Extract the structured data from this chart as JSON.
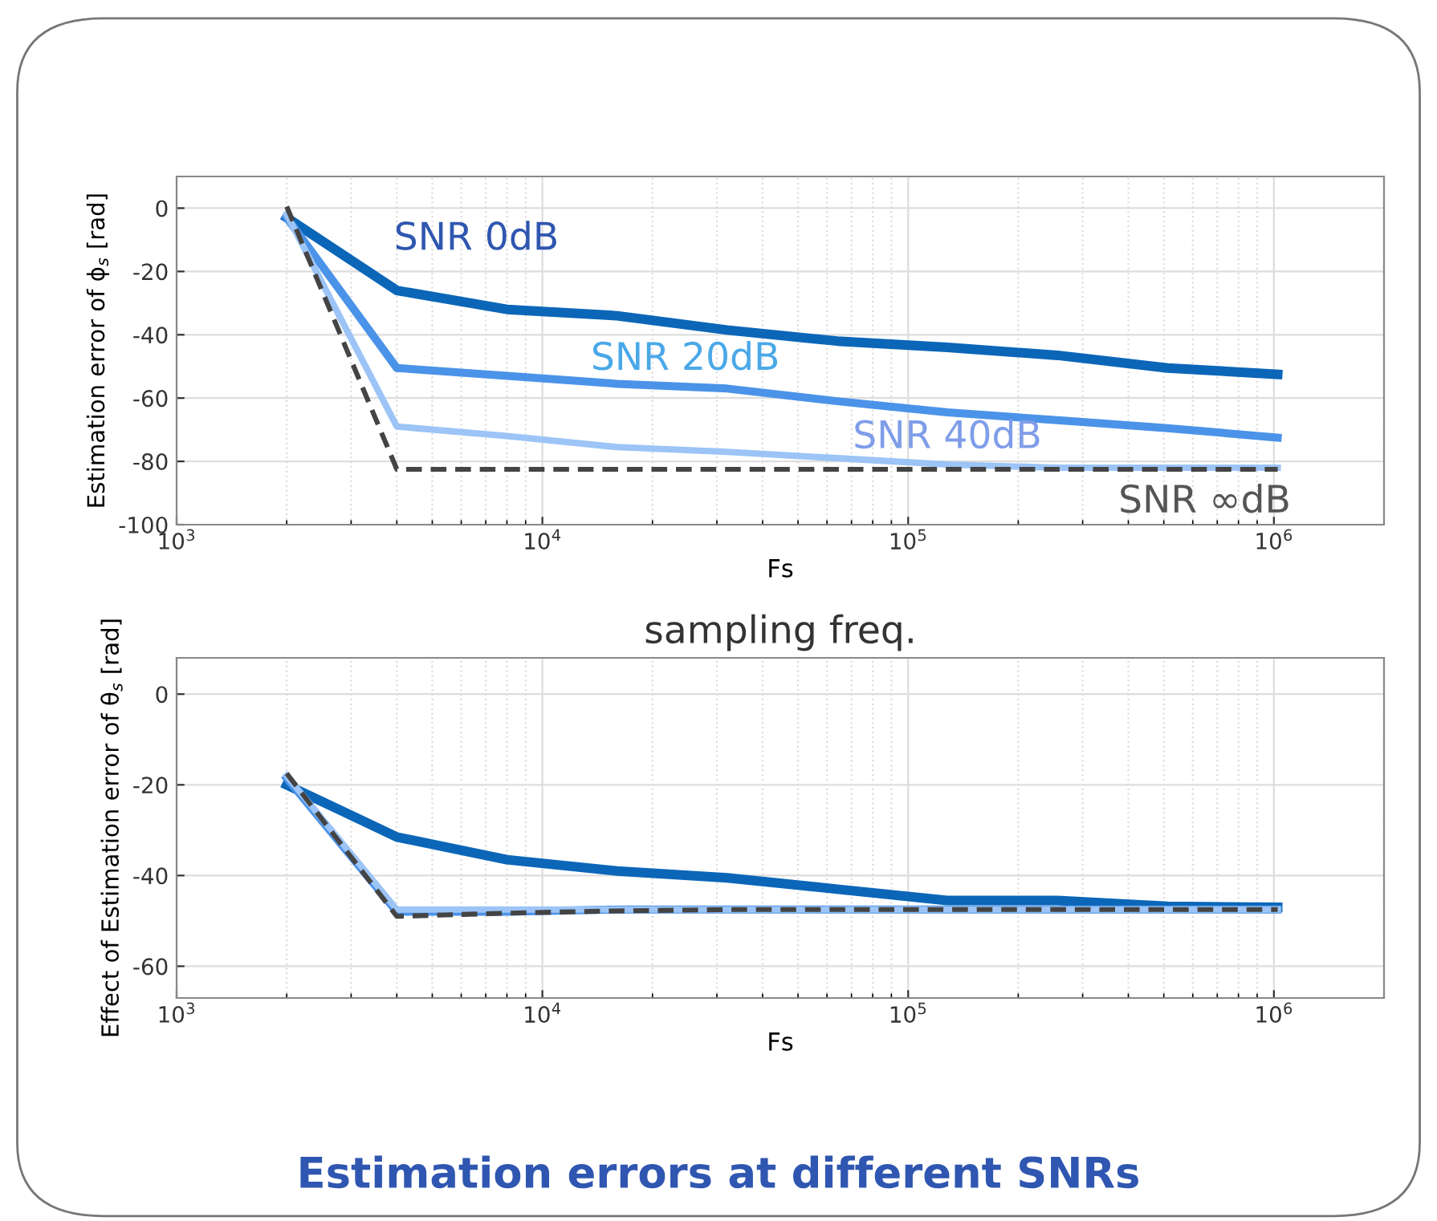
{
  "chart_data": [
    {
      "type": "line",
      "xlabel": "Fs",
      "ylabel": "Estimation error of ϕ$_{s}$ [rad]",
      "log": "x",
      "grid": true,
      "line_style": "solid",
      "marker": "none",
      "x": [
        2000,
        4000,
        8000,
        16000,
        32000,
        64000,
        128000,
        256000,
        512000,
        1024000
      ],
      "xlim": [
        1000,
        2000000
      ],
      "xticks": [
        {
          "value": 1000,
          "label": "10$^{3}$"
        },
        {
          "value": 10000,
          "label": "10$^{4}$"
        },
        {
          "value": 100000,
          "label": "10$^{5}$"
        },
        {
          "value": 1000000,
          "label": "10$^{6}$"
        }
      ],
      "ylim": [
        -100,
        10
      ],
      "yticks": [
        -100,
        -80,
        -60,
        -40,
        -20,
        0
      ],
      "series": [
        {
          "name": "SNR 0dB",
          "color": "#0b66b8",
          "values": [
            -3,
            -26,
            -32,
            -34,
            -38.5,
            -42,
            -44,
            -46.5,
            -50.5,
            -52.5
          ]
        },
        {
          "name": "SNR 20dB",
          "color": "#4b93e8",
          "values": [
            -3,
            -50.5,
            -53,
            -55.5,
            -57,
            -61,
            -64.5,
            -67,
            -69.5,
            -72.5
          ]
        },
        {
          "name": "SNR 40dB",
          "color": "#9cc4f6",
          "values": [
            -2,
            -69,
            -72,
            -75.5,
            -77,
            -79,
            -81,
            -82,
            -82,
            -82
          ]
        },
        {
          "name": "SNR ∞dB",
          "color": "#444444",
          "line_style": "dashed",
          "values": [
            0.5,
            -82.5,
            -82.5,
            -82.5,
            -82.5,
            -82.5,
            -82.5,
            -82.5,
            -82.5,
            -82.5
          ]
        }
      ],
      "annotations": [
        "sampling freq."
      ]
    },
    {
      "type": "line",
      "xlabel": "Fs",
      "ylabel": "Effect of Estimation error of θ$_{s}$ [rad]",
      "log": "x",
      "grid": true,
      "line_style": "solid",
      "marker": "none",
      "x": [
        2000,
        4000,
        8000,
        16000,
        32000,
        64000,
        128000,
        256000,
        512000,
        1024000
      ],
      "xlim": [
        1000,
        2000000
      ],
      "xticks": [
        {
          "value": 1000,
          "label": "10$^{3}$"
        },
        {
          "value": 10000,
          "label": "10$^{4}$"
        },
        {
          "value": 100000,
          "label": "10$^{5}$"
        },
        {
          "value": 1000000,
          "label": "10$^{6}$"
        }
      ],
      "ylim": [
        -67,
        8
      ],
      "yticks": [
        -60,
        -40,
        -20,
        0
      ],
      "series": [
        {
          "color": "#0b66b8",
          "values": [
            -20,
            -31.5,
            -36.5,
            -39,
            -40.5,
            -43,
            -45.5,
            -45.5,
            -46.8,
            -47
          ]
        },
        {
          "color": "#4b93e8",
          "values": [
            -18.5,
            -48,
            -48,
            -47.5,
            -47.5,
            -47.5,
            -47.5,
            -47.5,
            -47.5,
            -47.5
          ]
        },
        {
          "color": "#9cc4f6",
          "values": [
            -18,
            -47.5,
            -47.5,
            -47.5,
            -47.5,
            -47.5,
            -47.5,
            -47.5,
            -47.5,
            -47.5
          ]
        },
        {
          "color": "#444444",
          "line_style": "dashed",
          "values": [
            -17.5,
            -49,
            -48.3,
            -47.8,
            -47.5,
            -47.5,
            -47.5,
            -47.5,
            -47.5,
            -47.5
          ]
        }
      ],
      "annotations": [
        "Estimation errors at different SNRs"
      ]
    }
  ]
}
